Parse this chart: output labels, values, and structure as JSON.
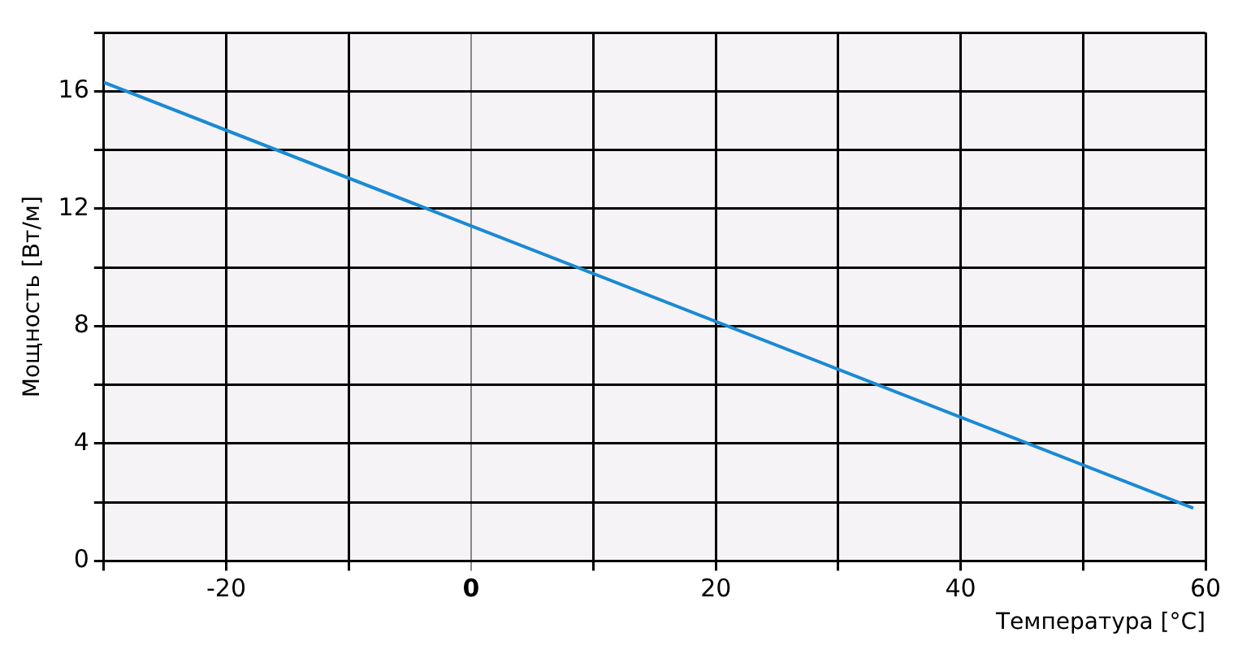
{
  "chart_data": {
    "type": "line",
    "xlabel": "Температура [°C]",
    "ylabel": "Мощность [Вт/м]",
    "series": [
      {
        "color": "#1a8ad4",
        "x": [
          -30,
          59
        ],
        "values": [
          16.3,
          1.8
        ]
      }
    ],
    "xlim": [
      -30,
      60
    ],
    "xticks": [
      {
        "value": -30,
        "label": null
      },
      -20,
      {
        "value": -10,
        "label": null
      },
      0,
      {
        "value": 10,
        "label": null
      },
      20,
      {
        "value": 30,
        "label": null
      },
      40,
      {
        "value": 50,
        "label": null
      },
      60
    ],
    "ylim": [
      0,
      18
    ],
    "yticks": [
      0,
      {
        "value": 2,
        "label": null
      },
      4,
      {
        "value": 6,
        "label": null
      },
      8,
      {
        "value": 10,
        "label": null
      },
      12,
      {
        "value": 14,
        "label": null
      },
      16,
      {
        "value": 18,
        "label": null
      }
    ],
    "grid": true,
    "legend": false,
    "marker": "none",
    "line_style": "solid"
  }
}
